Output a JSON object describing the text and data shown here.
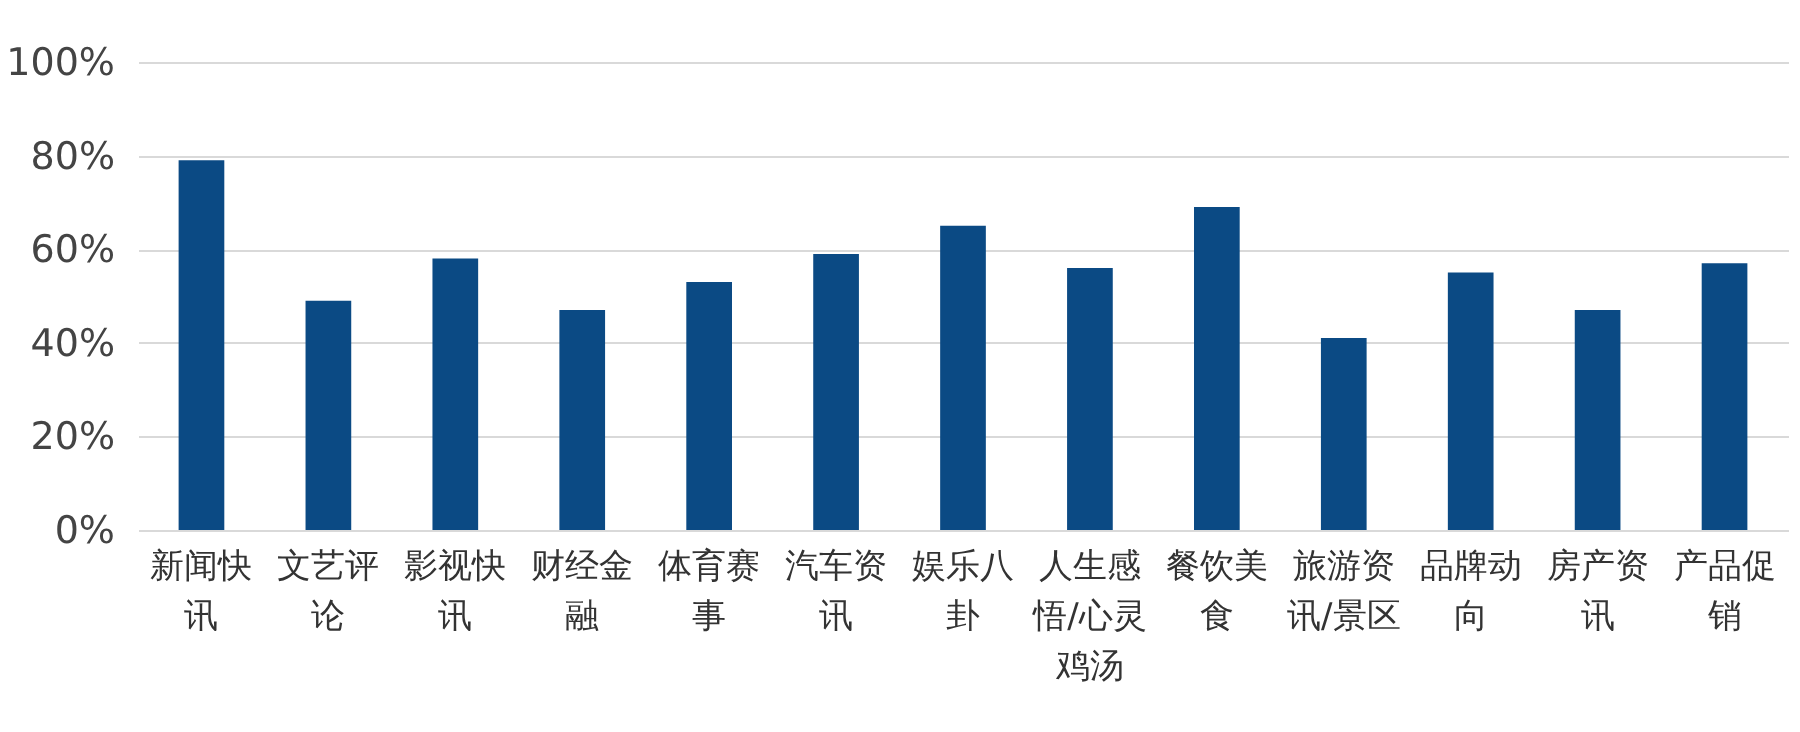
{
  "chart_data": {
    "type": "bar",
    "categories": [
      "新闻快讯",
      "文艺评论",
      "影视快讯",
      "财经金融",
      "体育赛事",
      "汽车资讯",
      "娱乐八卦",
      "人生感悟/心灵鸡汤",
      "餐饮美食",
      "旅游资讯/景区",
      "品牌动向",
      "房产资讯",
      "产品促销"
    ],
    "values": [
      79,
      49,
      58,
      47,
      53,
      59,
      65,
      56,
      69,
      41,
      55,
      47,
      57
    ],
    "color": "#0b4a84",
    "ylim": [
      0,
      100
    ],
    "yticks": [
      {
        "value": 0,
        "label": "0%"
      },
      {
        "value": 20,
        "label": "20%"
      },
      {
        "value": 40,
        "label": "40%"
      },
      {
        "value": 60,
        "label": "60%"
      },
      {
        "value": 80,
        "label": "80%"
      },
      {
        "value": 100,
        "label": "100%"
      }
    ],
    "grid": "y"
  }
}
